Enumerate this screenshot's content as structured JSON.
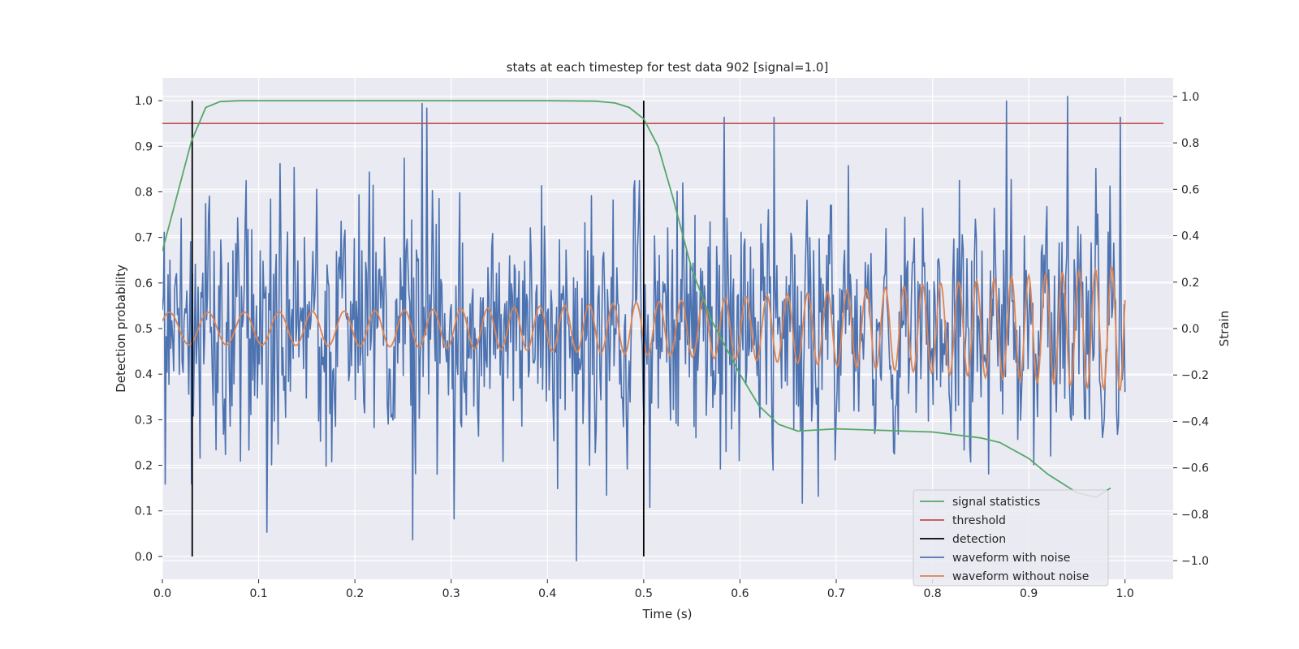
{
  "chart_data": {
    "type": "line",
    "title": "stats at each timestep for test data 902 [signal=1.0]",
    "xlabel": "Time (s)",
    "ylabel_left": "Detection probability",
    "ylabel_right": "Strain",
    "xlim": [
      0.0,
      1.05
    ],
    "ylim_left": [
      -0.05,
      1.05
    ],
    "ylim_right": [
      -1.08,
      1.08
    ],
    "xticks": [
      0.0,
      0.1,
      0.2,
      0.3,
      0.4,
      0.5,
      0.6,
      0.7,
      0.8,
      0.9,
      1.0
    ],
    "xtick_labels": [
      "0.0",
      "0.1",
      "0.2",
      "0.3",
      "0.4",
      "0.5",
      "0.6",
      "0.7",
      "0.8",
      "0.9",
      "1.0"
    ],
    "yticks_left": [
      0.0,
      0.1,
      0.2,
      0.3,
      0.4,
      0.5,
      0.6,
      0.7,
      0.8,
      0.9,
      1.0
    ],
    "ytick_labels_left": [
      "0.0",
      "0.1",
      "0.2",
      "0.3",
      "0.4",
      "0.5",
      "0.6",
      "0.7",
      "0.8",
      "0.9",
      "1.0"
    ],
    "yticks_right": [
      -1.0,
      -0.8,
      -0.6,
      -0.4,
      -0.2,
      0.0,
      0.2,
      0.4,
      0.6,
      0.8,
      1.0
    ],
    "ytick_labels_right": [
      "−1.0",
      "−0.8",
      "−0.6",
      "−0.4",
      "−0.2",
      "0.0",
      "0.2",
      "0.4",
      "0.6",
      "0.8",
      "1.0"
    ],
    "grid": true,
    "legend_location": "lower-right",
    "series": [
      {
        "name": "signal statistics",
        "axis": "left",
        "color": "#55a868",
        "x": [
          0.0,
          0.03,
          0.045,
          0.06,
          0.08,
          0.1,
          0.2,
          0.3,
          0.4,
          0.45,
          0.47,
          0.485,
          0.5,
          0.515,
          0.53,
          0.55,
          0.57,
          0.6,
          0.62,
          0.64,
          0.66,
          0.7,
          0.8,
          0.85,
          0.87,
          0.9,
          0.92,
          0.95,
          0.97,
          0.985
        ],
        "y": [
          0.67,
          0.91,
          0.985,
          0.998,
          1.0,
          1.0,
          1.0,
          1.0,
          1.0,
          0.999,
          0.995,
          0.985,
          0.96,
          0.9,
          0.79,
          0.63,
          0.52,
          0.4,
          0.33,
          0.29,
          0.275,
          0.28,
          0.273,
          0.26,
          0.25,
          0.215,
          0.18,
          0.14,
          0.13,
          0.15
        ]
      },
      {
        "name": "threshold",
        "axis": "left",
        "color": "#c44e52",
        "x": [
          0.0,
          1.04
        ],
        "y": [
          0.95,
          0.95
        ]
      },
      {
        "name": "detection",
        "axis": "left",
        "color": "#000000",
        "x_values": [
          0.031,
          0.5
        ],
        "ymin": 0.0,
        "ymax": 1.0
      },
      {
        "name": "waveform with noise",
        "axis": "right",
        "color": "#4c72b0",
        "x_start": 0.0,
        "x_end": 1.0,
        "n_points": 1024,
        "std": 0.26,
        "extremes": [
          {
            "x": 0.003,
            "y": -0.67
          },
          {
            "x": 0.26,
            "y": -0.91
          },
          {
            "x": 0.27,
            "y": 0.97
          },
          {
            "x": 0.275,
            "y": 0.95
          },
          {
            "x": 0.303,
            "y": -0.82
          },
          {
            "x": 0.43,
            "y": -1.0
          },
          {
            "x": 0.584,
            "y": 0.91
          },
          {
            "x": 0.635,
            "y": 0.91
          },
          {
            "x": 0.877,
            "y": 0.98
          },
          {
            "x": 0.94,
            "y": 1.0
          },
          {
            "x": 0.995,
            "y": 0.91
          }
        ]
      },
      {
        "name": "waveform without noise",
        "axis": "right",
        "color": "#dd8452",
        "x_start": 0.0,
        "x_end": 1.0,
        "freq_start_hz": 24,
        "freq_end_hz": 60,
        "amp_start": 0.07,
        "amp_end": 0.27
      }
    ]
  }
}
